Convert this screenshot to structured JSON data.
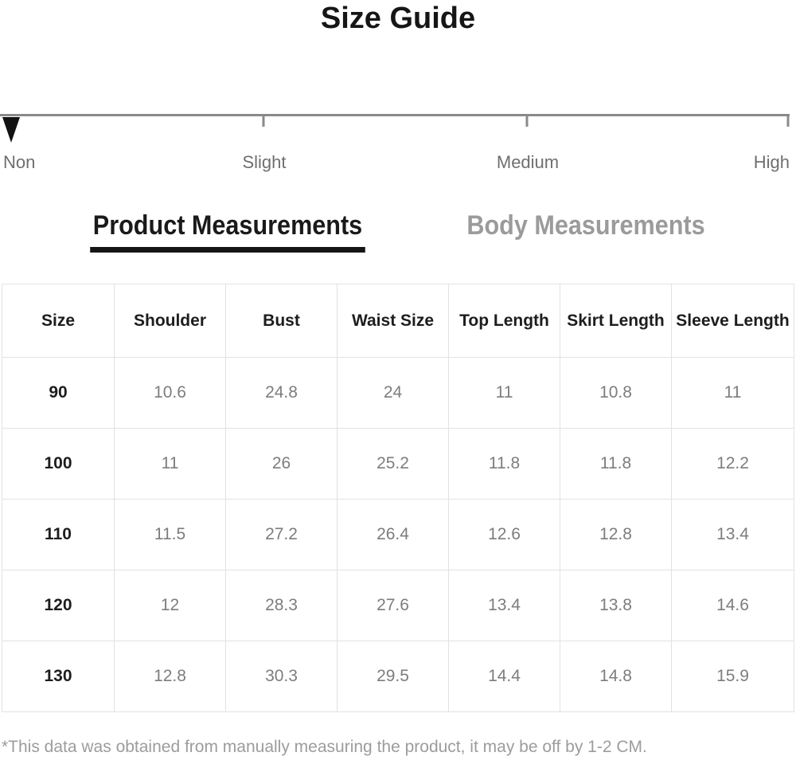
{
  "title": "Size Guide",
  "stretch_scale": {
    "items": [
      {
        "label": "Non",
        "marker": "pointer",
        "marker_pos": 1.4,
        "label_pos": 0.4,
        "align": "left"
      },
      {
        "label": "Slight",
        "marker": "tick",
        "marker_pos": 33.1,
        "label_pos": 33.2,
        "align": "center"
      },
      {
        "label": "Medium",
        "marker": "tick",
        "marker_pos": 66.2,
        "label_pos": 66.3,
        "align": "center"
      },
      {
        "label": "High",
        "marker": "tick",
        "marker_pos": 99.0,
        "label_pos": 99.2,
        "align": "right"
      }
    ]
  },
  "sections": {
    "product_heading": "Product Measurements",
    "body_heading": "Body Measurements"
  },
  "table": {
    "headers": [
      "Size",
      "Shoulder",
      "Bust",
      "Waist Size",
      "Top Length",
      "Skirt Length",
      "Sleeve Length"
    ],
    "rows": [
      [
        "90",
        "10.6",
        "24.8",
        "24",
        "11",
        "10.8",
        "11"
      ],
      [
        "100",
        "11",
        "26",
        "25.2",
        "11.8",
        "11.8",
        "12.2"
      ],
      [
        "110",
        "11.5",
        "27.2",
        "26.4",
        "12.6",
        "12.8",
        "13.4"
      ],
      [
        "120",
        "12",
        "28.3",
        "27.6",
        "13.4",
        "13.8",
        "14.6"
      ],
      [
        "130",
        "12.8",
        "30.3",
        "29.5",
        "14.4",
        "14.8",
        "15.9"
      ]
    ]
  },
  "footnote": "*This data was obtained from manually measuring the product, it may be off by 1-2 CM.",
  "colors": {
    "text_dark": "#1a1a1a",
    "value_gray": "#7d7d7d",
    "heading_gray": "#9b9b9b",
    "scale_line_gray": "#8a8a8a",
    "border_gray": "#e2e2e2",
    "footnote_gray": "#9c9c9c"
  }
}
